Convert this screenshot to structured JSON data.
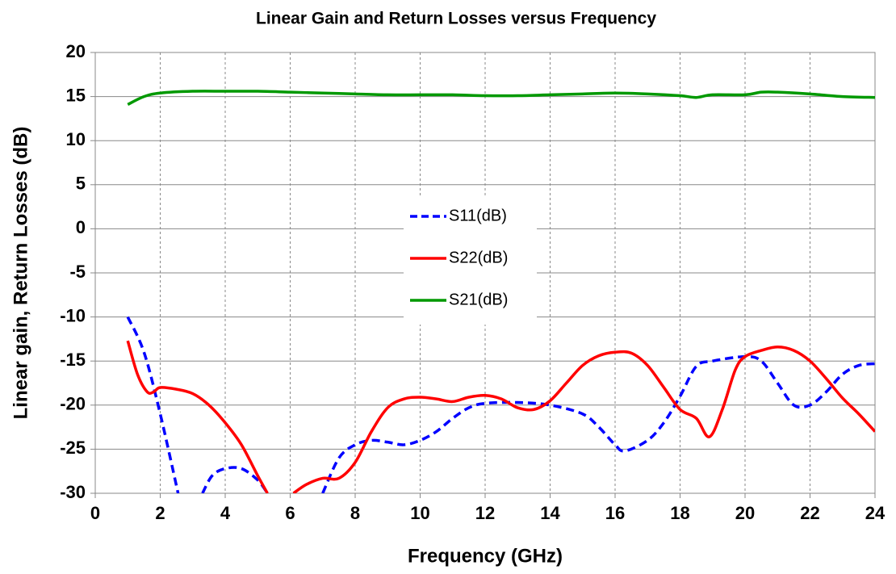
{
  "chart_data": {
    "type": "line",
    "title": "Linear Gain and Return Losses versus Frequency",
    "x_label": "Frequency (GHz)",
    "y_label": "Linear gain, Return Losses (dB)",
    "xlim": [
      0,
      24
    ],
    "xticks": [
      0,
      2,
      4,
      6,
      8,
      10,
      12,
      14,
      16,
      18,
      20,
      22,
      24
    ],
    "ylim": [
      -30,
      20
    ],
    "yticks": [
      -30,
      -25,
      -20,
      -15,
      -10,
      -5,
      0,
      5,
      10,
      15,
      20
    ],
    "grid": true,
    "series": [
      {
        "name": "S11(dB)",
        "color": "#0000ff",
        "dash": true,
        "x": [
          1,
          1.5,
          2,
          2.55,
          2.9,
          3.3,
          3.6,
          4,
          4.5,
          5,
          5.3,
          6,
          7,
          7.5,
          8,
          8.5,
          9,
          9.5,
          10,
          10.5,
          11,
          11.5,
          12,
          13,
          14,
          15,
          15.5,
          16,
          16.3,
          17,
          17.5,
          18,
          18.5,
          19,
          20,
          20.5,
          21,
          21.5,
          22,
          22.5,
          23,
          23.5,
          24
        ],
        "values": [
          -10,
          -14,
          -21,
          -30,
          null,
          -30,
          -28,
          -27.2,
          -27.2,
          -28.5,
          -30,
          null,
          -30,
          -26,
          -24.5,
          -24,
          -24.2,
          -24.5,
          -24,
          -23,
          -21.5,
          -20.3,
          -19.8,
          -19.7,
          -20,
          -21,
          -22.5,
          -24.5,
          -25.2,
          -24,
          -22,
          -19,
          -15.6,
          -15,
          -14.5,
          -15,
          -17.5,
          -20,
          -20,
          -18.5,
          -16.5,
          -15.5,
          -15.3
        ]
      },
      {
        "name": "S22(dB)",
        "color": "#ff0000",
        "dash": false,
        "x": [
          1,
          1.3,
          1.6,
          1.8,
          2,
          2.5,
          3,
          3.5,
          4,
          4.5,
          5,
          5.3,
          5.7,
          6.1,
          6.5,
          7,
          7.5,
          8,
          8.5,
          9,
          9.5,
          10,
          10.5,
          11,
          11.5,
          12,
          12.5,
          13,
          13.5,
          14,
          14.5,
          15,
          15.5,
          16,
          16.5,
          17,
          17.5,
          18,
          18.5,
          18.9,
          19.3,
          19.7,
          20,
          20.5,
          21,
          21.5,
          22,
          22.5,
          23,
          23.5,
          24
        ],
        "values": [
          -12.7,
          -16.5,
          -18.5,
          -18.5,
          -18,
          -18.2,
          -18.7,
          -20,
          -22,
          -24.5,
          -28,
          -30,
          null,
          -30,
          -29,
          -28.3,
          -28.3,
          -26.5,
          -23,
          -20.3,
          -19.3,
          -19.1,
          -19.3,
          -19.6,
          -19.1,
          -18.9,
          -19.3,
          -20.3,
          -20.5,
          -19.5,
          -17.5,
          -15.5,
          -14.4,
          -14,
          -14.1,
          -15.5,
          -18,
          -20.5,
          -21.5,
          -23.6,
          -20.5,
          -16,
          -14.5,
          -13.8,
          -13.4,
          -13.8,
          -15,
          -17,
          -19.2,
          -21,
          -23
        ]
      },
      {
        "name": "S21(dB)",
        "color": "#009900",
        "dash": false,
        "x": [
          1,
          1.5,
          2,
          3,
          4,
          5,
          6,
          7,
          8,
          9,
          10,
          11,
          12,
          13,
          14,
          15,
          16,
          17,
          18,
          18.5,
          19,
          20,
          20.5,
          21,
          22,
          23,
          24
        ],
        "values": [
          14.1,
          15,
          15.4,
          15.6,
          15.6,
          15.6,
          15.5,
          15.4,
          15.3,
          15.2,
          15.2,
          15.2,
          15.1,
          15.1,
          15.2,
          15.3,
          15.4,
          15.3,
          15.1,
          14.9,
          15.2,
          15.2,
          15.5,
          15.5,
          15.3,
          15,
          14.9
        ]
      }
    ]
  }
}
